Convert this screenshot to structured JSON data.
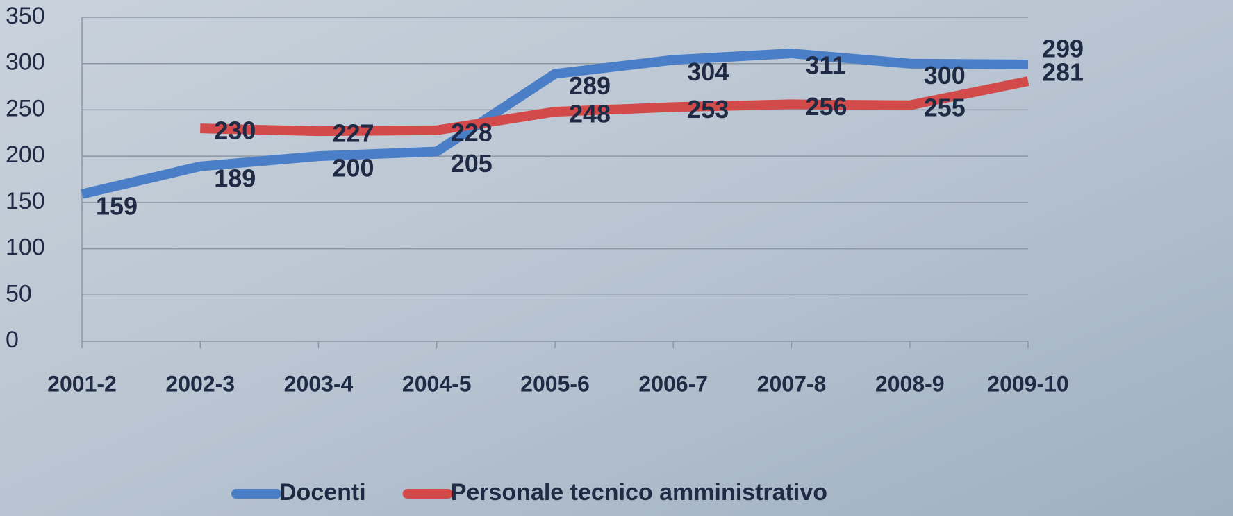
{
  "chart_data": {
    "type": "line",
    "categories": [
      "2001-2",
      "2002-3",
      "2003-4",
      "2004-5",
      "2005-6",
      "2006-7",
      "2007-8",
      "2008-9",
      "2009-10"
    ],
    "series": [
      {
        "name": "Docenti",
        "color": "#4a7fc8",
        "values": [
          159,
          189,
          200,
          205,
          289,
          304,
          311,
          300,
          299
        ]
      },
      {
        "name": "Personale tecnico amministrativo",
        "color": "#d24a4a",
        "values": [
          null,
          230,
          227,
          228,
          248,
          253,
          256,
          255,
          281
        ]
      }
    ],
    "ylim": [
      0,
      350
    ],
    "yticks": [
      0,
      50,
      100,
      150,
      200,
      250,
      300,
      350
    ],
    "grid": true,
    "legend": "bottom"
  }
}
